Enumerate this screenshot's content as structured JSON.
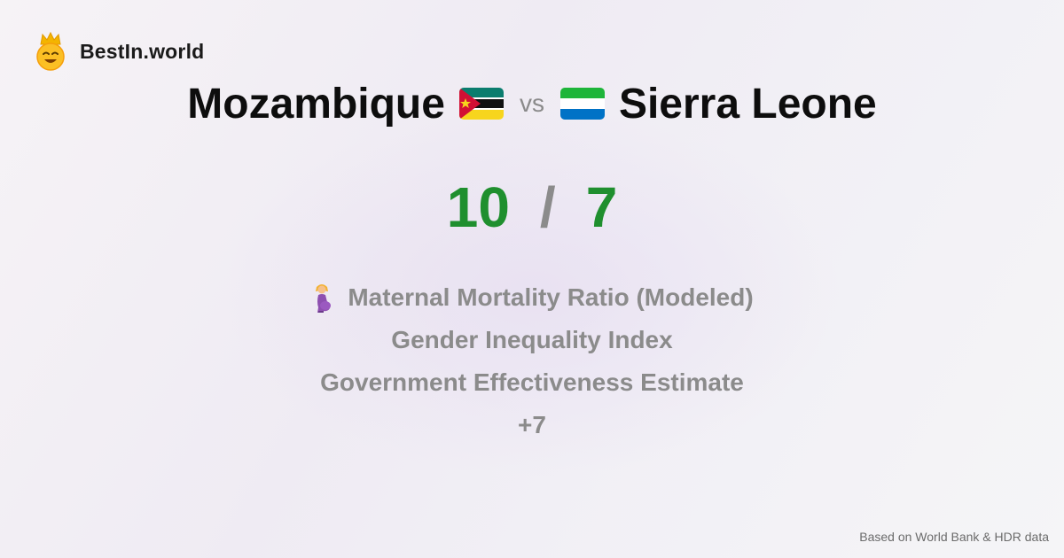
{
  "brand": {
    "name": "BestIn.world",
    "logo_icon": "crowned-smiley-icon"
  },
  "comparison": {
    "left_country": "Mozambique",
    "left_flag_icon": "mozambique-flag-icon",
    "vs_label": "vs",
    "right_country": "Sierra Leone",
    "right_flag_icon": "sierra-leone-flag-icon"
  },
  "score": {
    "left": "10",
    "separator": "/",
    "right": "7",
    "color": "#1f8f2e"
  },
  "metrics": [
    {
      "label": "Maternal Mortality Ratio (Modeled)",
      "icon": "pregnant-woman-icon"
    },
    {
      "label": "Gender Inequality Index"
    },
    {
      "label": "Government Effectiveness Estimate"
    },
    {
      "label": "+7"
    }
  ],
  "footer": {
    "source_note": "Based on World Bank & HDR data"
  }
}
